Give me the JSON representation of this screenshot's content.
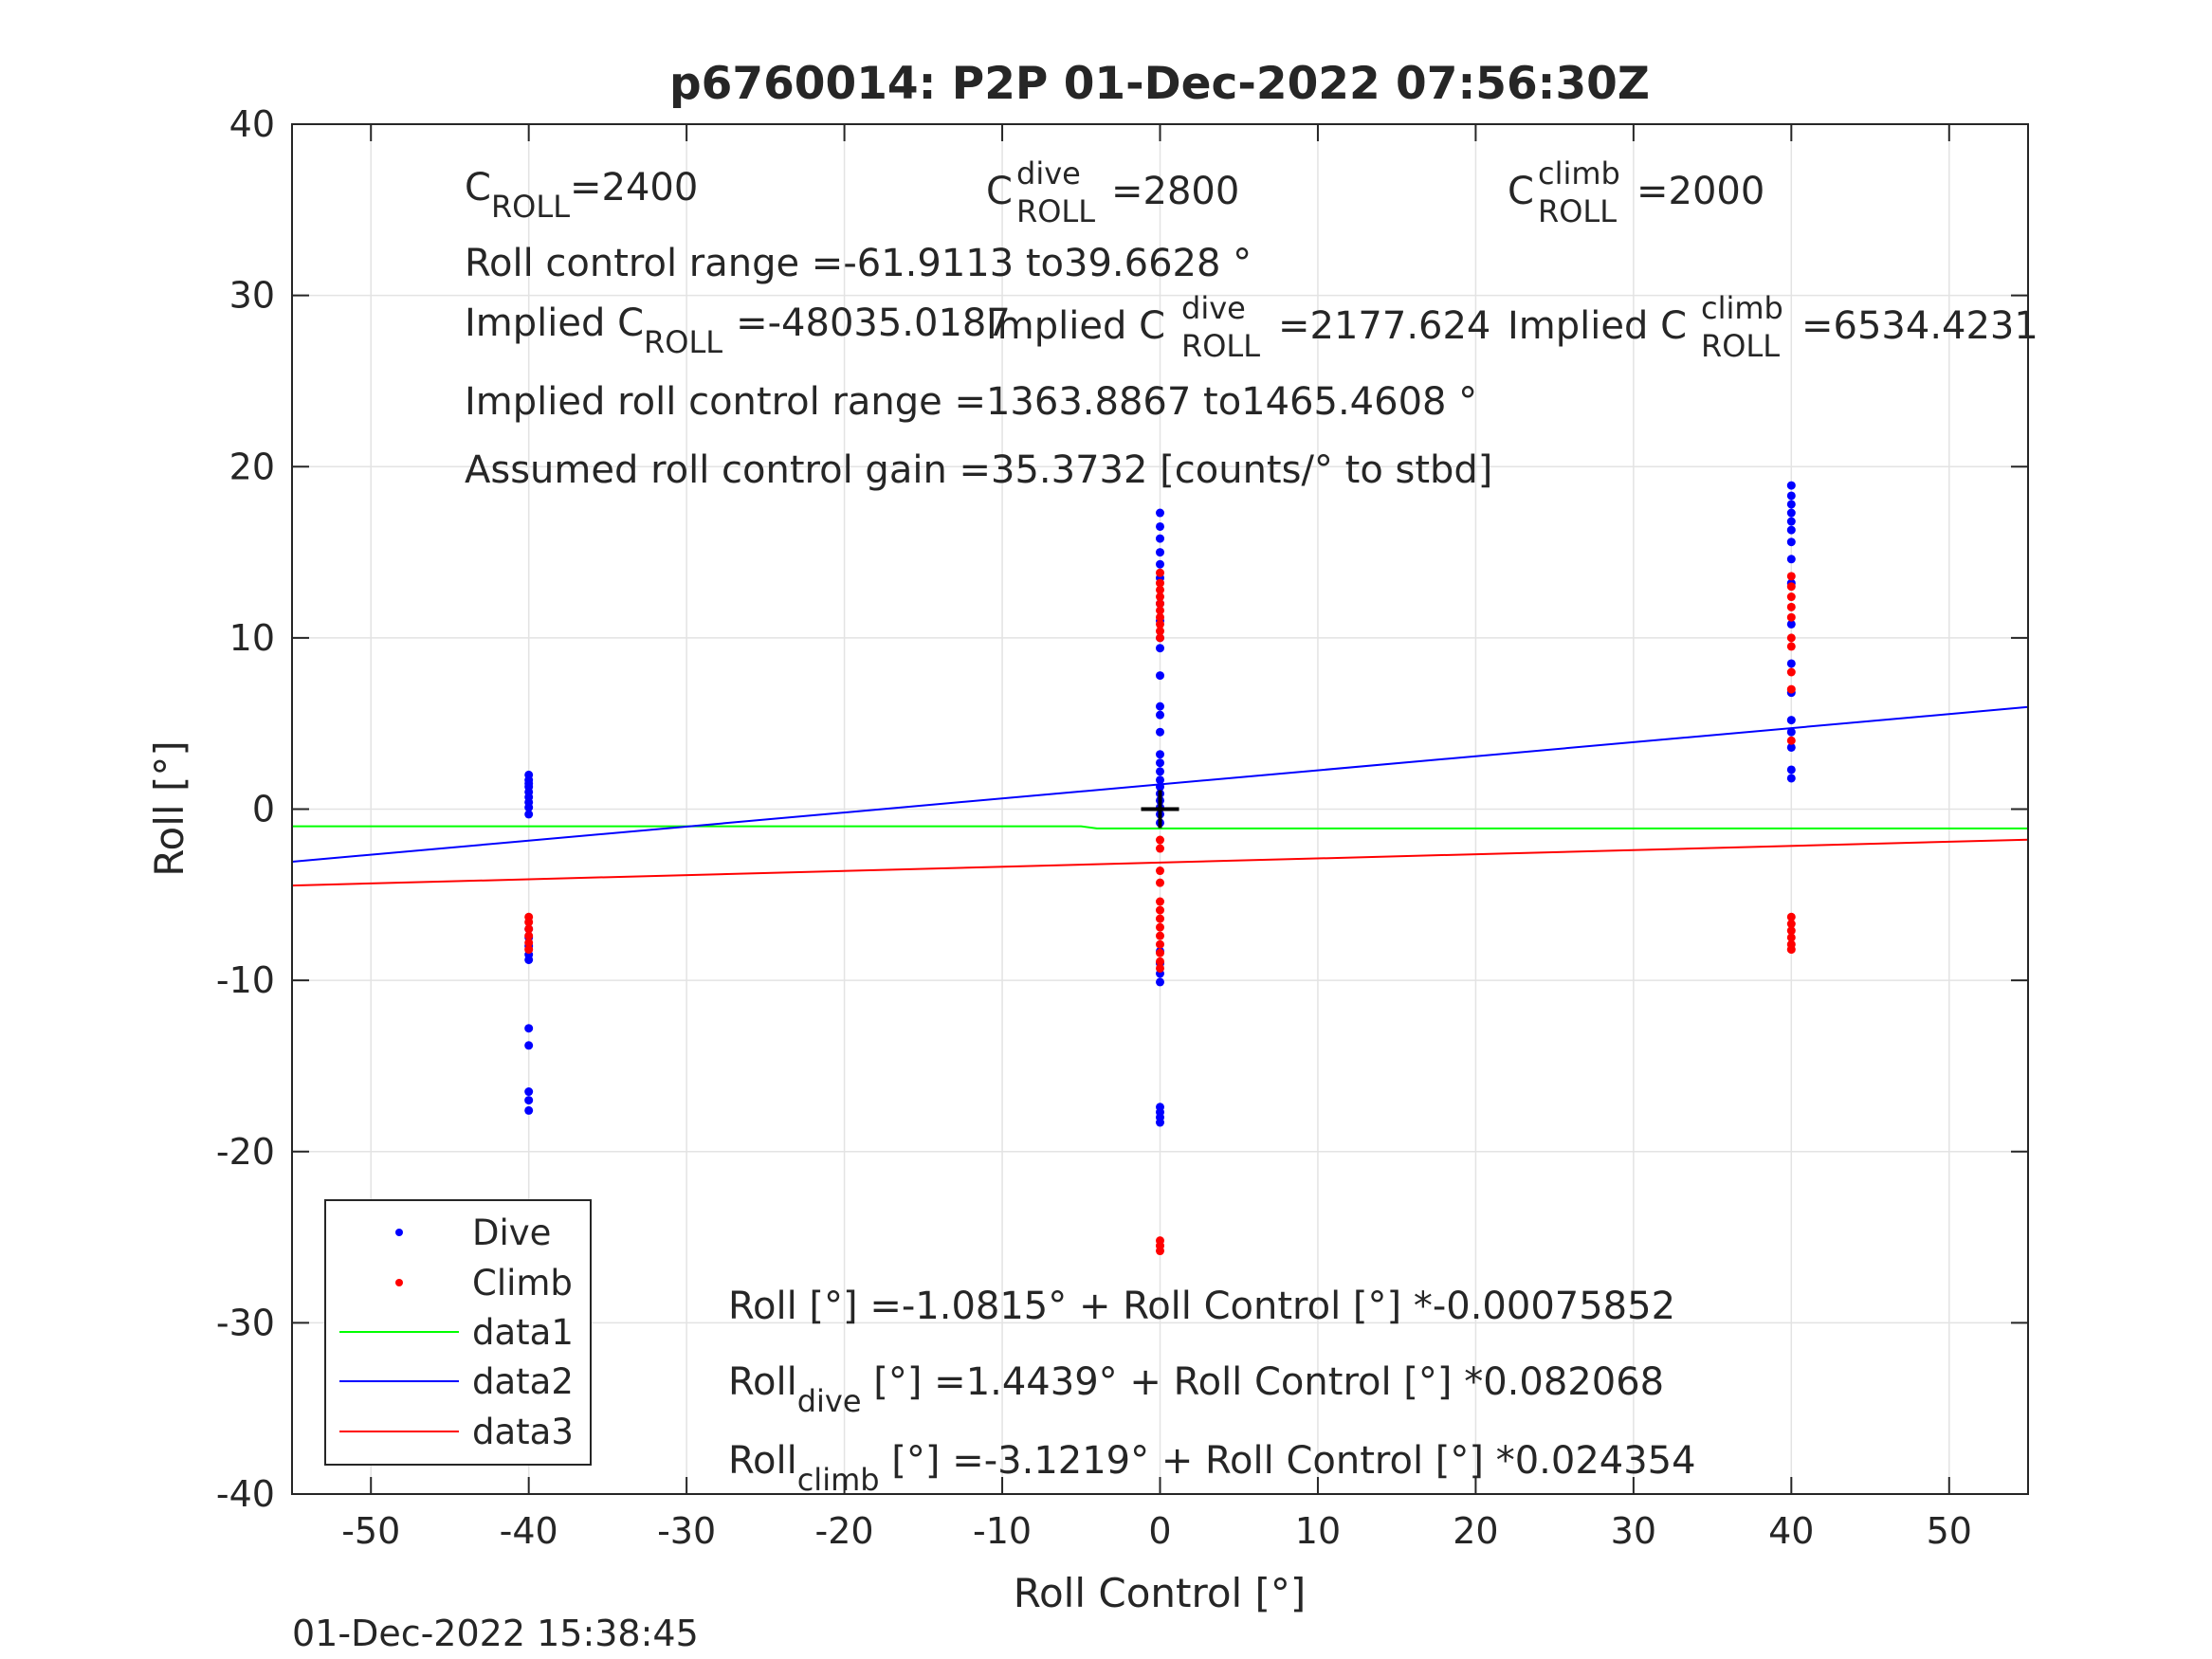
{
  "chart_data": {
    "type": "scatter",
    "title": "p6760014: P2P 01-Dec-2022 07:56:30Z",
    "xlabel": "Roll Control [°]",
    "ylabel": "Roll [°]",
    "xlim": [
      -55,
      55
    ],
    "ylim": [
      -40,
      40
    ],
    "xticks": [
      -50,
      -40,
      -30,
      -20,
      -10,
      0,
      10,
      20,
      30,
      40,
      50
    ],
    "yticks": [
      -40,
      -30,
      -20,
      -10,
      0,
      10,
      20,
      30,
      40
    ],
    "xtick_labels": [
      "-50",
      "-40",
      "-30",
      "-20",
      "-10",
      "0",
      "10",
      "20",
      "30",
      "40",
      "50"
    ],
    "ytick_labels": [
      "-40",
      "-30",
      "-20",
      "-10",
      "0",
      "10",
      "20",
      "30",
      "40"
    ],
    "grid": true,
    "legend_position": "bottom-left",
    "colors": {
      "dive": "#0000ff",
      "climb": "#ff0000",
      "data1": "#00ff00",
      "data2": "#0000ff",
      "data3": "#ff0000",
      "marker": "#000000"
    },
    "series": [
      {
        "name": "Dive",
        "kind": "points",
        "points": [
          [
            -40,
            2.0
          ],
          [
            -40,
            1.7
          ],
          [
            -40,
            1.5
          ],
          [
            -40,
            1.3
          ],
          [
            -40,
            1.0
          ],
          [
            -40,
            0.7
          ],
          [
            -40,
            0.4
          ],
          [
            -40,
            0.1
          ],
          [
            -40,
            -0.3
          ],
          [
            -40,
            -7.0
          ],
          [
            -40,
            -7.5
          ],
          [
            -40,
            -8.0
          ],
          [
            -40,
            -8.5
          ],
          [
            -40,
            -8.8
          ],
          [
            -40,
            -12.8
          ],
          [
            -40,
            -13.8
          ],
          [
            -40,
            -16.5
          ],
          [
            -40,
            -17.0
          ],
          [
            -40,
            -17.6
          ],
          [
            0,
            17.3
          ],
          [
            0,
            16.5
          ],
          [
            0,
            15.8
          ],
          [
            0,
            15.0
          ],
          [
            0,
            14.3
          ],
          [
            0,
            13.5
          ],
          [
            0,
            12.0
          ],
          [
            0,
            11.0
          ],
          [
            0,
            10.0
          ],
          [
            0,
            9.4
          ],
          [
            0,
            7.8
          ],
          [
            0,
            6.0
          ],
          [
            0,
            5.5
          ],
          [
            0,
            4.5
          ],
          [
            0,
            3.2
          ],
          [
            0,
            2.7
          ],
          [
            0,
            2.2
          ],
          [
            0,
            1.7
          ],
          [
            0,
            1.3
          ],
          [
            0,
            0.9
          ],
          [
            0,
            0.5
          ],
          [
            0,
            0.1
          ],
          [
            0,
            -0.3
          ],
          [
            0,
            -0.8
          ],
          [
            0,
            -8.3
          ],
          [
            0,
            -9.0
          ],
          [
            0,
            -9.6
          ],
          [
            0,
            -10.1
          ],
          [
            0,
            -17.4
          ],
          [
            0,
            -17.7
          ],
          [
            0,
            -18.0
          ],
          [
            0,
            -18.3
          ],
          [
            40,
            18.9
          ],
          [
            40,
            18.3
          ],
          [
            40,
            17.8
          ],
          [
            40,
            17.3
          ],
          [
            40,
            16.8
          ],
          [
            40,
            16.3
          ],
          [
            40,
            15.6
          ],
          [
            40,
            14.6
          ],
          [
            40,
            13.2
          ],
          [
            40,
            10.8
          ],
          [
            40,
            8.5
          ],
          [
            40,
            6.8
          ],
          [
            40,
            5.2
          ],
          [
            40,
            4.5
          ],
          [
            40,
            3.6
          ],
          [
            40,
            2.3
          ],
          [
            40,
            1.8
          ]
        ]
      },
      {
        "name": "Climb",
        "kind": "points",
        "points": [
          [
            -40,
            -6.3
          ],
          [
            -40,
            -6.6
          ],
          [
            -40,
            -7.0
          ],
          [
            -40,
            -7.4
          ],
          [
            -40,
            -7.8
          ],
          [
            -40,
            -8.2
          ],
          [
            0,
            13.8
          ],
          [
            0,
            13.2
          ],
          [
            0,
            12.8
          ],
          [
            0,
            12.4
          ],
          [
            0,
            12.0
          ],
          [
            0,
            11.6
          ],
          [
            0,
            11.2
          ],
          [
            0,
            10.8
          ],
          [
            0,
            10.4
          ],
          [
            0,
            10.0
          ],
          [
            0,
            -1.8
          ],
          [
            0,
            -2.3
          ],
          [
            0,
            -3.6
          ],
          [
            0,
            -4.3
          ],
          [
            0,
            -5.4
          ],
          [
            0,
            -5.9
          ],
          [
            0,
            -6.4
          ],
          [
            0,
            -6.9
          ],
          [
            0,
            -7.4
          ],
          [
            0,
            -7.9
          ],
          [
            0,
            -8.4
          ],
          [
            0,
            -8.9
          ],
          [
            0,
            -9.3
          ],
          [
            0,
            -25.2
          ],
          [
            0,
            -25.5
          ],
          [
            0,
            -25.8
          ],
          [
            40,
            13.6
          ],
          [
            40,
            13.0
          ],
          [
            40,
            12.4
          ],
          [
            40,
            11.8
          ],
          [
            40,
            11.2
          ],
          [
            40,
            10.0
          ],
          [
            40,
            9.5
          ],
          [
            40,
            8.0
          ],
          [
            40,
            7.0
          ],
          [
            40,
            4.0
          ],
          [
            40,
            -6.3
          ],
          [
            40,
            -6.7
          ],
          [
            40,
            -7.1
          ],
          [
            40,
            -7.5
          ],
          [
            40,
            -7.9
          ],
          [
            40,
            -8.2
          ]
        ]
      },
      {
        "name": "data1",
        "kind": "line",
        "x": [
          -55,
          -5,
          -4,
          55
        ],
        "y": [
          -1.0,
          -1.0,
          -1.13,
          -1.13
        ]
      },
      {
        "name": "data2",
        "kind": "line",
        "x": [
          -55,
          55
        ],
        "y": [
          -3.07,
          5.96
        ]
      },
      {
        "name": "data3",
        "kind": "line",
        "x": [
          -55,
          55
        ],
        "y": [
          -4.46,
          -1.78
        ]
      }
    ],
    "marker_point": [
      0,
      0
    ],
    "legend": [
      "Dive",
      "Climb",
      "data1",
      "data2",
      "data3"
    ],
    "annotations": {
      "c_roll": {
        "base": "C",
        "sub": "ROLL",
        "value": "=2400"
      },
      "c_roll_dive": {
        "base": "C",
        "sup": "dive",
        "sub": "ROLL",
        "value": "=2800"
      },
      "c_roll_climb": {
        "base": "C",
        "sup": "climb",
        "sub": "ROLL",
        "value": "=2000"
      },
      "roll_control_range": "Roll control range =-61.9113 to39.6628 °",
      "implied_c_roll": {
        "prefix": "Implied C",
        "sub": "ROLL",
        "value": "=-48035.0187"
      },
      "implied_c_roll_dive": {
        "prefix": "Implied C",
        "sup": "dive",
        "sub": "ROLL",
        "value": "=2177.624"
      },
      "implied_c_roll_climb": {
        "prefix": "Implied C",
        "sup": "climb",
        "sub": "ROLL",
        "value": "=6534.4231"
      },
      "implied_range": "Implied roll control range =1363.8867 to1465.4608 °",
      "gain": "Assumed roll control gain =35.3732 [counts/° to stbd]",
      "fit_all": "Roll [°] =-1.0815° + Roll Control [°] *-0.00075852",
      "fit_dive": {
        "base": "Roll",
        "sub": "dive",
        "rest": " [°] =1.4439° + Roll Control [°] *0.082068"
      },
      "fit_climb": {
        "base": "Roll",
        "sub": "climb",
        "rest": " [°] =-3.1219° + Roll Control [°] *0.024354"
      }
    },
    "timestamp": "01-Dec-2022 15:38:45"
  }
}
